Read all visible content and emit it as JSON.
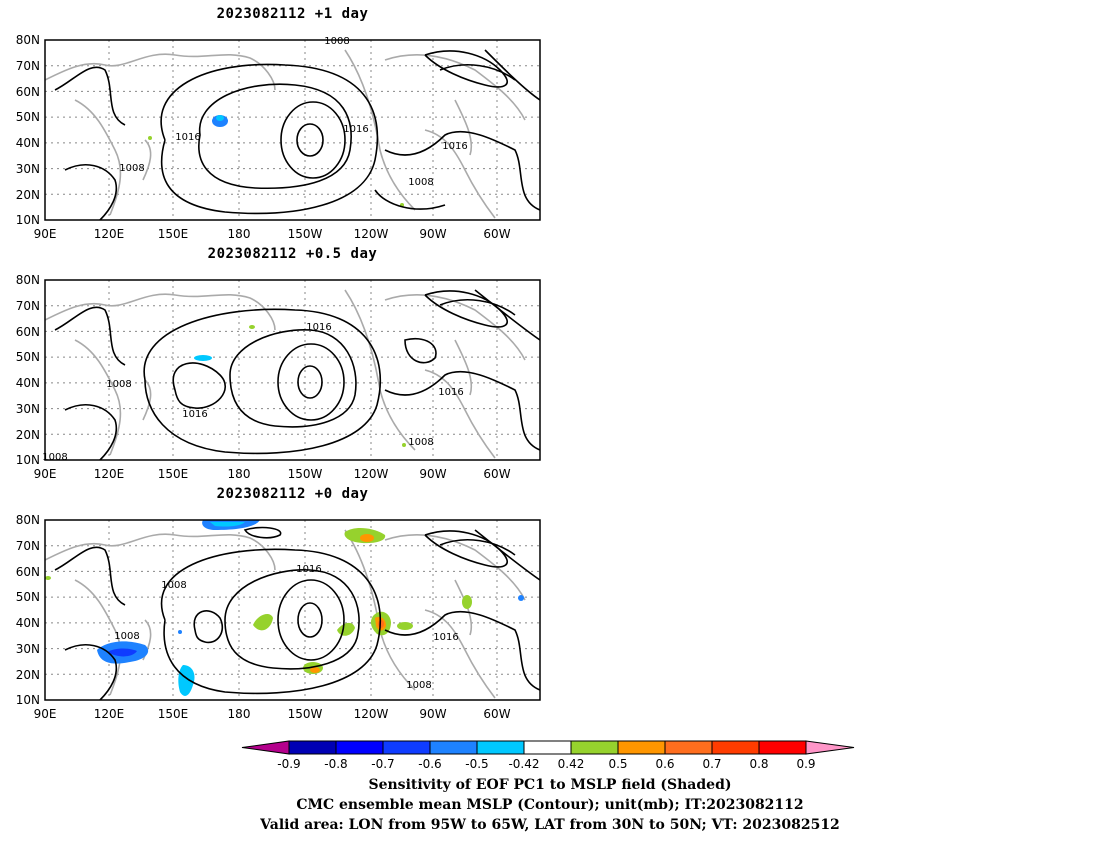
{
  "panels": [
    {
      "title": "2023082112 +1 day",
      "contour_labels": [
        "1008",
        "1016",
        "1016",
        "1016",
        "1008",
        "1008"
      ]
    },
    {
      "title": "2023082112 +0.5 day",
      "contour_labels": [
        "1016",
        "1008",
        "1016",
        "1016",
        "1008",
        "1008"
      ]
    },
    {
      "title": "2023082112 +0 day",
      "contour_labels": [
        "1008",
        "1016",
        "1008",
        "1016",
        "1008"
      ]
    }
  ],
  "axes": {
    "lat_labels": [
      "80N",
      "70N",
      "60N",
      "50N",
      "40N",
      "30N",
      "20N",
      "10N"
    ],
    "lon_labels": [
      "90E",
      "120E",
      "150E",
      "180",
      "150W",
      "120W",
      "90W",
      "60W"
    ]
  },
  "colorbar": {
    "tick_labels": [
      "-0.9",
      "-0.8",
      "-0.7",
      "-0.6",
      "-0.5",
      "-0.42",
      "0.42",
      "0.5",
      "0.6",
      "0.7",
      "0.8",
      "0.9"
    ],
    "colors": [
      "#b4008c",
      "#0000b4",
      "#0000ff",
      "#0f3cff",
      "#1e82ff",
      "#00c8ff",
      "#ffffff",
      "#96d22d",
      "#ff9600",
      "#ff6e1e",
      "#ff3c00",
      "#ff0000",
      "#ff96c8"
    ]
  },
  "captions": {
    "line1": "Sensitivity of EOF PC1 to MSLP field (Shaded)",
    "line2": "CMC ensemble mean MSLP (Contour); unit(mb); IT:2023082112",
    "line3": "Valid area: LON from 95W to 65W, LAT from 30N to 50N; VT: 2023082512"
  }
}
